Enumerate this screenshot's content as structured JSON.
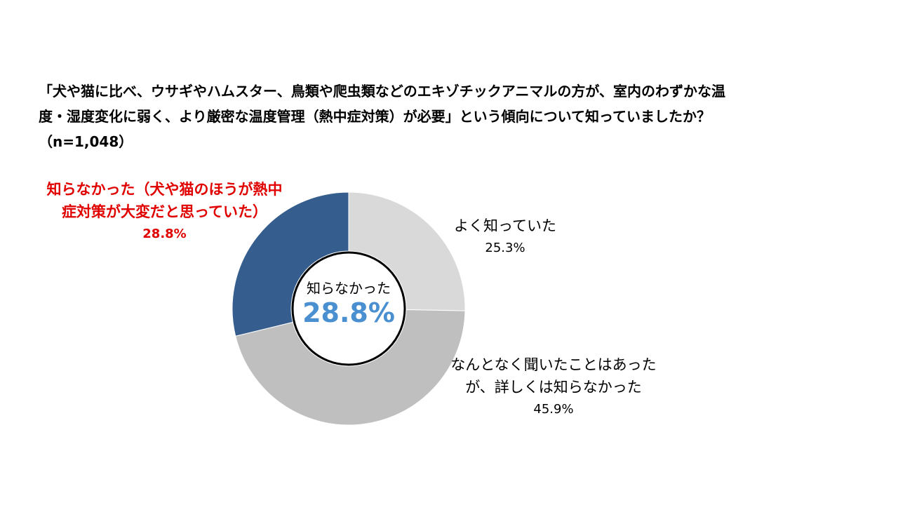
{
  "chart_data": {
    "type": "donut",
    "title": "「犬や猫に比べ、ウサギやハムスター、鳥類や爬虫類などのエキゾチックアニマルの方が、室内のわずかな温度・湿度変化に弱く、より厳密な温度管理（熱中症対策）が必要」という傾向について知っていましたか？（n=1,048）",
    "categories": [
      "よく知っていた",
      "なんとなく聞いたことはあったが、詳しくは知らなかった",
      "知らなかった（犬や猫のほうが熱中症対策が大変だと思っていた）"
    ],
    "values": [
      25.3,
      45.9,
      28.8
    ],
    "value_labels": [
      "25.3%",
      "45.9%",
      "28.8%"
    ],
    "colors": [
      "#d9d9d9",
      "#bfbfbf",
      "#355e8e"
    ],
    "center_label": {
      "text": "知らなかった",
      "value_label": "28.8%"
    }
  }
}
